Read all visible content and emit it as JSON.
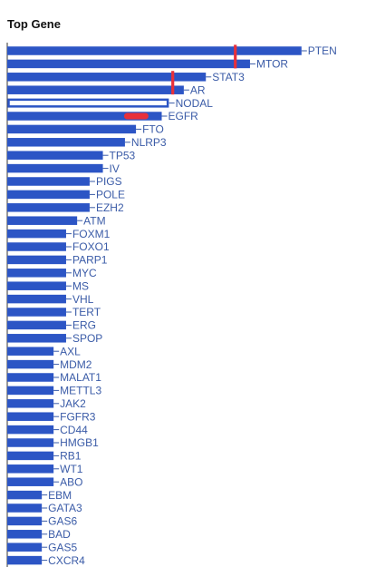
{
  "header": {
    "title": "Top Gene"
  },
  "colors": {
    "bar": "#2c55c5",
    "highlight_outline": "#2c55c5",
    "marker": "#e8303a",
    "label": "#3a5ba7",
    "axis": "#333333"
  },
  "chart_data": {
    "type": "bar",
    "orientation": "horizontal",
    "title": "Top Gene",
    "xlabel": "",
    "ylabel": "",
    "grid": false,
    "xlim": [
      0,
      40
    ],
    "categories": [
      "PTEN",
      "MTOR",
      "STAT3",
      "AR",
      "NODAL",
      "EGFR",
      "FTO",
      "NLRP3",
      "TP53",
      "IV",
      "PIGS",
      "POLE",
      "EZH2",
      "ATM",
      "FOXM1",
      "FOXO1",
      "PARP1",
      "MYC",
      "MS",
      "VHL",
      "TERT",
      "ERG",
      "SPOP",
      "AXL",
      "MDM2",
      "MALAT1",
      "METTL3",
      "JAK2",
      "FGFR3",
      "CD44",
      "HMGB1",
      "RB1",
      "WT1",
      "ABO",
      "EBM",
      "GATA3",
      "GAS6",
      "BAD",
      "GAS5",
      "CXCR4"
    ],
    "values": [
      40,
      33,
      27,
      24,
      22,
      21,
      17.5,
      16,
      13,
      13,
      11.2,
      11.2,
      11.2,
      9.5,
      8,
      8,
      8,
      8,
      8,
      8,
      8,
      8,
      8,
      6.3,
      6.3,
      6.3,
      6.3,
      6.3,
      6.3,
      6.3,
      6.3,
      6.3,
      6.3,
      6.3,
      4.7,
      4.7,
      4.7,
      4.7,
      4.7,
      4.7
    ],
    "outlined": [
      "NODAL"
    ],
    "markers": [
      {
        "category": "MTOR",
        "x": 31,
        "shape": "vertical"
      },
      {
        "category": "AR",
        "x": 22.5,
        "shape": "vertical"
      },
      {
        "category": "EGFR",
        "x": 19.2,
        "shape": "horizontal"
      }
    ]
  }
}
